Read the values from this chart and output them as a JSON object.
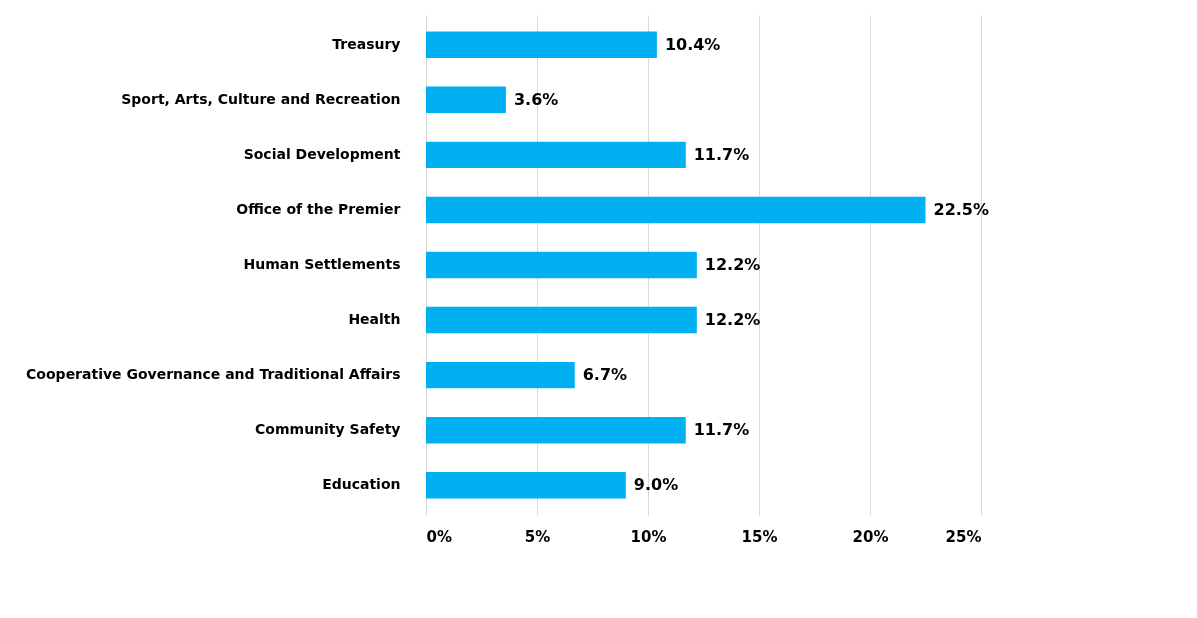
{
  "chart_data": {
    "type": "bar",
    "orientation": "horizontal",
    "categories": [
      "Treasury",
      "Sport, Arts, Culture and Recreation",
      "Social Development",
      "Office of the Premier",
      "Human Settlements",
      "Health",
      "Cooperative Governance and Traditional Affairs",
      "Community Safety",
      "Education"
    ],
    "values": [
      10.4,
      3.6,
      11.7,
      22.5,
      12.2,
      12.2,
      6.7,
      11.7,
      9.0
    ],
    "value_labels": [
      "10.4%",
      "3.6%",
      "11.7%",
      "22.5%",
      "12.2%",
      "12.2%",
      "6.7%",
      "11.7%",
      "9.0%"
    ],
    "color": "#00b0f0",
    "xlim": [
      0,
      25
    ],
    "xticks": [
      {
        "value": 0,
        "label": "0%"
      },
      {
        "value": 5,
        "label": "5%"
      },
      {
        "value": 10,
        "label": "10%"
      },
      {
        "value": 15,
        "label": "15%"
      },
      {
        "value": 20,
        "label": "20%"
      },
      {
        "value": 25,
        "label": "25%"
      }
    ],
    "grid": "x"
  }
}
